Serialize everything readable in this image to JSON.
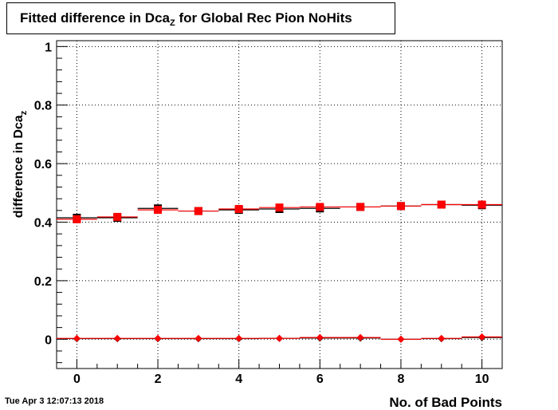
{
  "title": {
    "main": "Fitted difference in Dca",
    "sub": "Z",
    "rest": " for Global Rec Pion NoHits"
  },
  "timestamp": "Tue Apr  3 12:07:13 2018",
  "chart_data": {
    "type": "scatter",
    "xlabel": "No. of Bad Points",
    "ylabel": {
      "main": "difference in Dca",
      "sub": "z"
    },
    "xlim": [
      -0.5,
      10.5
    ],
    "ylim": [
      -0.1,
      1.02
    ],
    "xticks": [
      "0",
      "2",
      "4",
      "6",
      "8",
      "10"
    ],
    "yticks": [
      "0",
      "0.2",
      "0.4",
      "0.6",
      "0.8",
      "1"
    ],
    "grid": true,
    "x": [
      0,
      1,
      2,
      3,
      4,
      5,
      6,
      7,
      8,
      9,
      10
    ],
    "series": [
      {
        "color": "#000000",
        "marker": "square",
        "values": [
          0.415,
          0.415,
          0.447,
          0.438,
          0.442,
          0.445,
          0.447,
          0.452,
          0.455,
          0.46,
          0.458
        ]
      },
      {
        "color": "#ff0000",
        "marker": "square",
        "values": [
          0.41,
          0.418,
          0.442,
          0.438,
          0.445,
          0.45,
          0.452,
          0.452,
          0.455,
          0.46,
          0.46
        ]
      },
      {
        "color": "#000000",
        "marker": "diamond",
        "values": [
          0.002,
          0.002,
          0.002,
          0.002,
          0.002,
          0.003,
          0.004,
          0.004,
          0.0,
          0.002,
          0.006
        ]
      },
      {
        "color": "#ff0000",
        "marker": "diamond",
        "values": [
          0.003,
          0.003,
          0.003,
          0.003,
          0.003,
          0.003,
          0.006,
          0.006,
          0.0,
          0.003,
          0.008
        ]
      }
    ]
  }
}
